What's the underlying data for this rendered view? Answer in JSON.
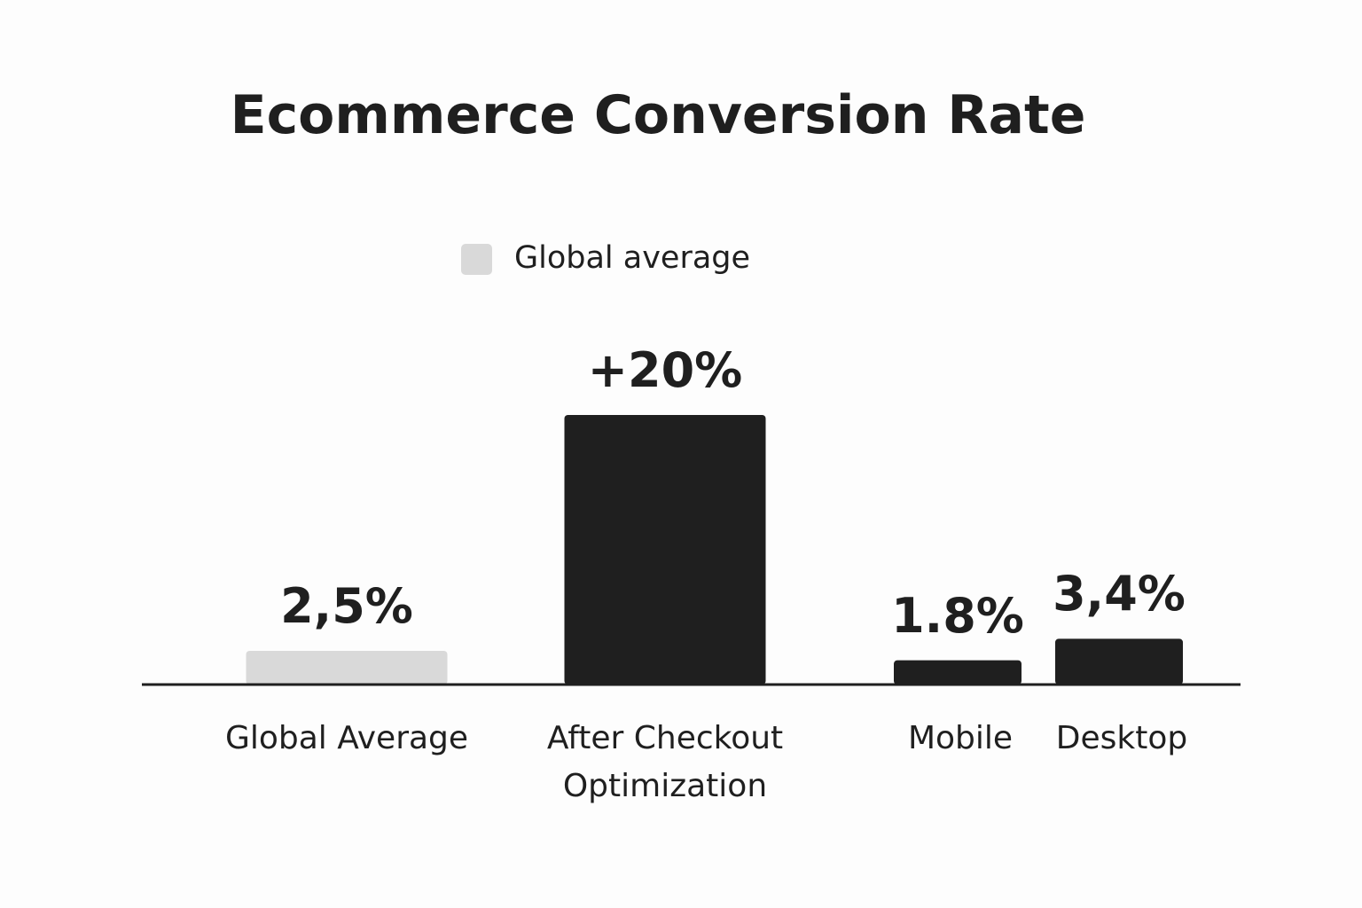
{
  "chart_data": {
    "type": "bar",
    "title": "Ecommerce Conversion Rate",
    "categories": [
      "Global Average",
      "After Checkout Optimization",
      "Mobile",
      "Desktop"
    ],
    "values": [
      2.5,
      20,
      1.8,
      3.4
    ],
    "value_labels": [
      "2,5%",
      "+20%",
      "1.8%",
      "3,4%"
    ],
    "colors": [
      "#d9d9d9",
      "#1f1f1f",
      "#1f1f1f",
      "#1f1f1f"
    ],
    "legend": [
      {
        "label": "Global average",
        "color": "#d9d9d9"
      }
    ],
    "ylim": [
      0,
      20
    ]
  }
}
